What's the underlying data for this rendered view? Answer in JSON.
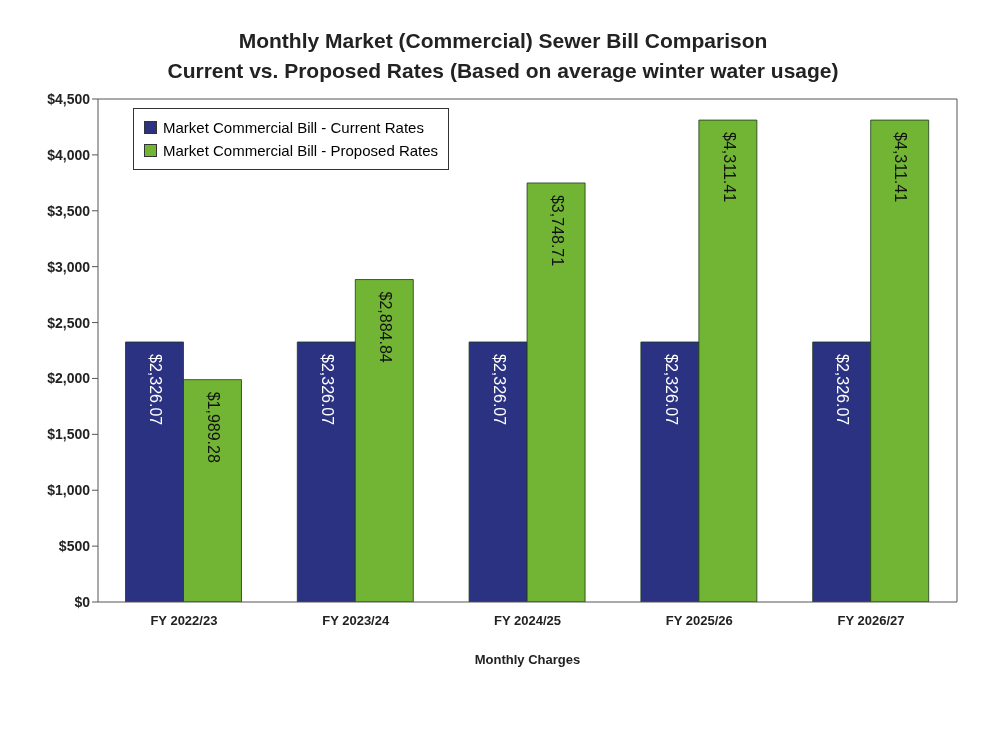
{
  "chart_data": {
    "type": "bar",
    "title": "Monthly Market (Commercial) Sewer Bill Comparison",
    "subtitle": "Current vs. Proposed Rates (Based on average winter water usage)",
    "xlabel": "Monthly Charges",
    "categories": [
      "FY 2022/23",
      "FY 2023/24",
      "FY 2024/25",
      "FY 2025/26",
      "FY 2026/27"
    ],
    "series": [
      {
        "name": "Market Commercial Bill - Current Rates",
        "color": "#2b3282",
        "values": [
          2326.07,
          2326.07,
          2326.07,
          2326.07,
          2326.07
        ],
        "value_labels": [
          "$2,326.07",
          "$2,326.07",
          "$2,326.07",
          "$2,326.07",
          "$2,326.07"
        ]
      },
      {
        "name": "Market Commercial Bill - Proposed Rates",
        "color": "#72b534",
        "values": [
          1989.28,
          2884.84,
          3748.71,
          4311.41,
          4311.41
        ],
        "value_labels": [
          "$1,989.28",
          "$2,884.84",
          "$3,748.71",
          "$4,311.41",
          "$4,311.41"
        ]
      }
    ],
    "ylim": [
      0,
      4500
    ],
    "yticks": [
      {
        "value": 0,
        "label": "$0"
      },
      {
        "value": 500,
        "label": "$500"
      },
      {
        "value": 1000,
        "label": "$1,000"
      },
      {
        "value": 1500,
        "label": "$1,500"
      },
      {
        "value": 2000,
        "label": "$2,000"
      },
      {
        "value": 2500,
        "label": "$2,500"
      },
      {
        "value": 3000,
        "label": "$3,000"
      },
      {
        "value": 3500,
        "label": "$3,500"
      },
      {
        "value": 4000,
        "label": "$4,000"
      },
      {
        "value": 4500,
        "label": "$4,500"
      }
    ],
    "grid": false,
    "legend": "top left"
  }
}
